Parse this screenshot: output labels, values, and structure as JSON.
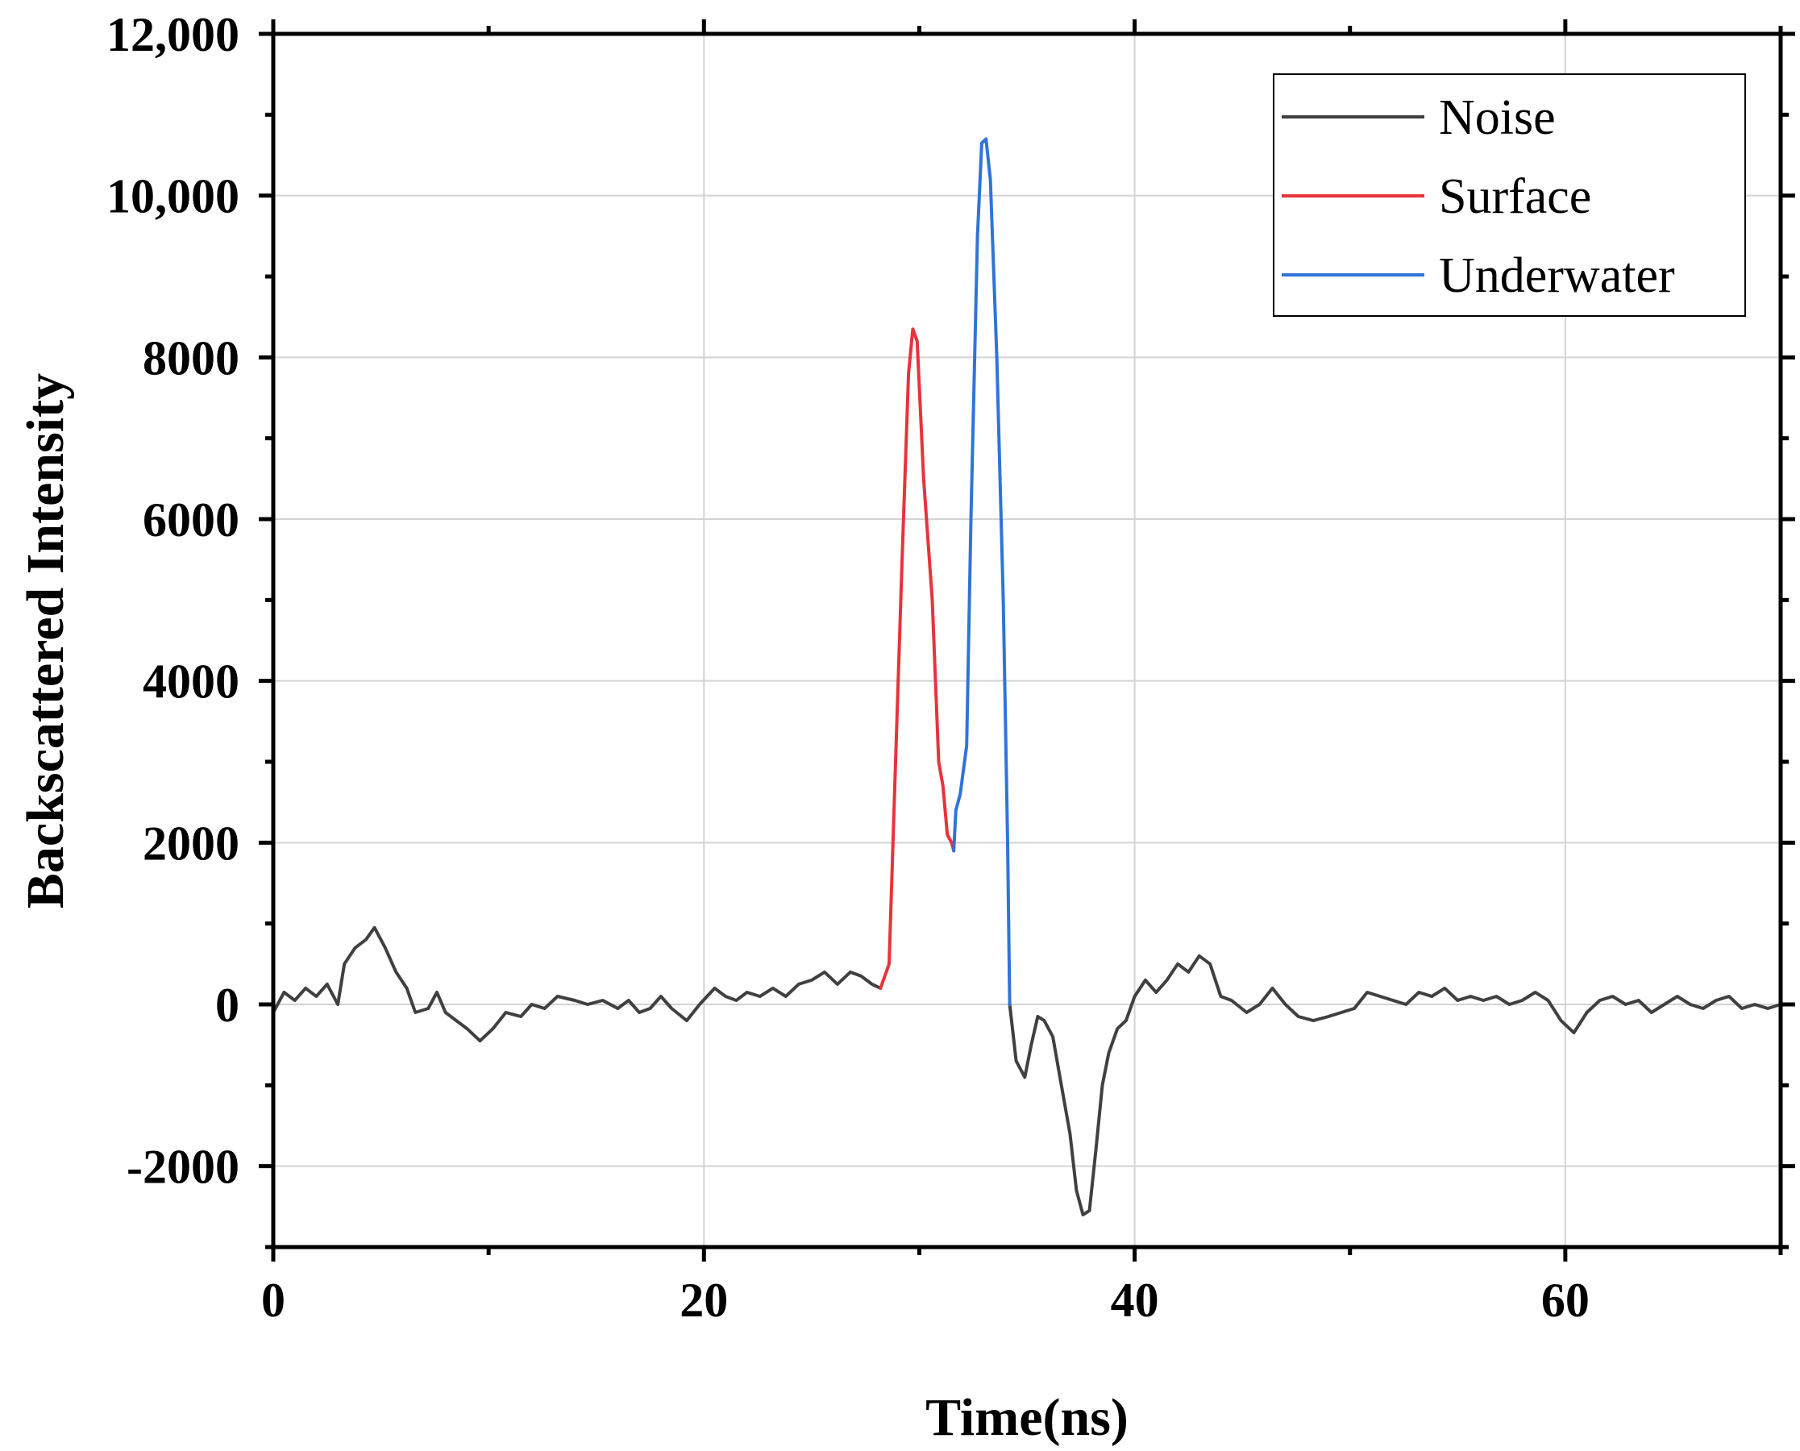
{
  "chart_data": {
    "type": "line",
    "title": "",
    "xlabel": "Time(ns)",
    "ylabel": "Backscattered Intensity",
    "xlim": [
      0,
      70
    ],
    "ylim": [
      -3000,
      12000
    ],
    "xticks": [
      0,
      20,
      40,
      60
    ],
    "xtick_labels": [
      "0",
      "20",
      "40",
      "60"
    ],
    "yticks": [
      -2000,
      0,
      2000,
      4000,
      6000,
      8000,
      10000,
      12000
    ],
    "ytick_labels": [
      "-2000",
      "0",
      "2000",
      "4000",
      "6000",
      "8000",
      "10,000",
      "12,000"
    ],
    "grid": true,
    "legend_position": "top-right",
    "series": [
      {
        "name": "Noise",
        "color": "#404040",
        "segments": [
          [
            [
              0,
              -100
            ],
            [
              0.5,
              150
            ],
            [
              1,
              50
            ],
            [
              1.5,
              200
            ],
            [
              2,
              100
            ],
            [
              2.5,
              250
            ],
            [
              3,
              0
            ],
            [
              3.3,
              500
            ],
            [
              3.8,
              700
            ],
            [
              4.3,
              800
            ],
            [
              4.7,
              950
            ],
            [
              5.2,
              700
            ],
            [
              5.7,
              400
            ],
            [
              6.2,
              200
            ],
            [
              6.6,
              -100
            ],
            [
              7.2,
              -50
            ],
            [
              7.6,
              150
            ],
            [
              8,
              -100
            ],
            [
              8.5,
              -200
            ],
            [
              9,
              -300
            ],
            [
              9.6,
              -450
            ],
            [
              10.2,
              -300
            ],
            [
              10.8,
              -100
            ],
            [
              11.5,
              -150
            ],
            [
              12,
              0
            ],
            [
              12.6,
              -50
            ],
            [
              13.2,
              100
            ],
            [
              14,
              50
            ],
            [
              14.6,
              0
            ],
            [
              15.3,
              50
            ],
            [
              16,
              -50
            ],
            [
              16.5,
              50
            ],
            [
              17,
              -100
            ],
            [
              17.5,
              -50
            ],
            [
              18,
              100
            ],
            [
              18.5,
              -50
            ],
            [
              19.2,
              -200
            ],
            [
              19.8,
              0
            ],
            [
              20.5,
              200
            ],
            [
              21,
              100
            ],
            [
              21.5,
              50
            ],
            [
              22,
              150
            ],
            [
              22.6,
              100
            ],
            [
              23.2,
              200
            ],
            [
              23.8,
              100
            ],
            [
              24.4,
              250
            ],
            [
              25,
              300
            ],
            [
              25.6,
              400
            ],
            [
              26.2,
              250
            ],
            [
              26.8,
              400
            ],
            [
              27.3,
              350
            ],
            [
              27.8,
              250
            ],
            [
              28.2,
              200
            ]
          ],
          [
            [
              34.2,
              0
            ],
            [
              34.5,
              -700
            ],
            [
              34.9,
              -900
            ],
            [
              35.2,
              -500
            ],
            [
              35.5,
              -150
            ],
            [
              35.8,
              -200
            ],
            [
              36.2,
              -400
            ],
            [
              36.6,
              -1000
            ],
            [
              37,
              -1600
            ],
            [
              37.3,
              -2300
            ],
            [
              37.6,
              -2600
            ],
            [
              37.9,
              -2550
            ],
            [
              38.2,
              -1800
            ],
            [
              38.5,
              -1000
            ],
            [
              38.8,
              -600
            ],
            [
              39.2,
              -300
            ],
            [
              39.6,
              -200
            ],
            [
              40,
              100
            ],
            [
              40.5,
              300
            ],
            [
              41,
              150
            ],
            [
              41.5,
              300
            ],
            [
              42,
              500
            ],
            [
              42.5,
              400
            ],
            [
              43,
              600
            ],
            [
              43.5,
              500
            ],
            [
              44,
              100
            ],
            [
              44.5,
              50
            ],
            [
              45.2,
              -100
            ],
            [
              45.8,
              0
            ],
            [
              46.4,
              200
            ],
            [
              47,
              0
            ],
            [
              47.6,
              -150
            ],
            [
              48.3,
              -200
            ],
            [
              49,
              -150
            ],
            [
              49.6,
              -100
            ],
            [
              50.2,
              -50
            ],
            [
              50.8,
              150
            ],
            [
              51.4,
              100
            ],
            [
              52,
              50
            ],
            [
              52.6,
              0
            ],
            [
              53.2,
              150
            ],
            [
              53.8,
              100
            ],
            [
              54.4,
              200
            ],
            [
              55,
              50
            ],
            [
              55.6,
              100
            ],
            [
              56.2,
              50
            ],
            [
              56.8,
              100
            ],
            [
              57.4,
              0
            ],
            [
              58,
              50
            ],
            [
              58.6,
              150
            ],
            [
              59.2,
              50
            ],
            [
              59.8,
              -200
            ],
            [
              60.4,
              -350
            ],
            [
              61,
              -100
            ],
            [
              61.6,
              50
            ],
            [
              62.2,
              100
            ],
            [
              62.8,
              0
            ],
            [
              63.4,
              50
            ],
            [
              64,
              -100
            ],
            [
              64.6,
              0
            ],
            [
              65.2,
              100
            ],
            [
              65.8,
              0
            ],
            [
              66.4,
              -50
            ],
            [
              67,
              50
            ],
            [
              67.6,
              100
            ],
            [
              68.2,
              -50
            ],
            [
              68.8,
              0
            ],
            [
              69.4,
              -50
            ],
            [
              70,
              0
            ]
          ]
        ]
      },
      {
        "name": "Surface",
        "color": "#e8333a",
        "segments": [
          [
            [
              28.2,
              200
            ],
            [
              28.6,
              500
            ],
            [
              28.9,
              3000
            ],
            [
              29.2,
              5500
            ],
            [
              29.5,
              7800
            ],
            [
              29.7,
              8350
            ],
            [
              29.9,
              8200
            ],
            [
              30.2,
              6500
            ],
            [
              30.6,
              5000
            ],
            [
              30.9,
              3000
            ],
            [
              31.1,
              2700
            ],
            [
              31.3,
              2100
            ],
            [
              31.5,
              2000
            ],
            [
              31.6,
              1900
            ]
          ]
        ]
      },
      {
        "name": "Underwater",
        "color": "#2f74d8",
        "segments": [
          [
            [
              31.6,
              1900
            ],
            [
              31.7,
              2400
            ],
            [
              31.9,
              2600
            ],
            [
              32.2,
              3200
            ],
            [
              32.4,
              6000
            ],
            [
              32.7,
              9500
            ],
            [
              32.9,
              10650
            ],
            [
              33.1,
              10700
            ],
            [
              33.3,
              10200
            ],
            [
              33.6,
              8000
            ],
            [
              33.9,
              5000
            ],
            [
              34.1,
              2000
            ],
            [
              34.2,
              0
            ]
          ]
        ]
      }
    ]
  }
}
